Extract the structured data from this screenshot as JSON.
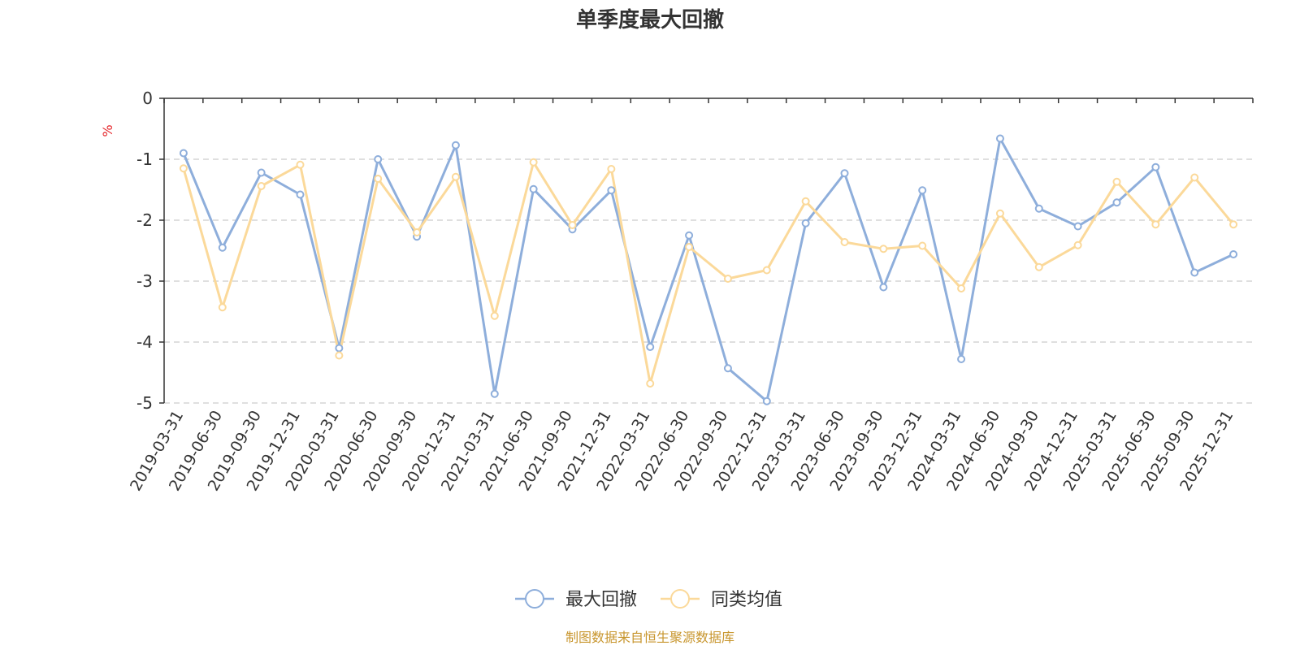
{
  "chart_data": {
    "type": "line",
    "title": "单季度最大回撤",
    "ylabel": "%",
    "xlabel": "",
    "ylim": [
      -5,
      0
    ],
    "yticks": [
      0,
      -1,
      -2,
      -3,
      -4,
      -5
    ],
    "grid": true,
    "legend_position": "bottom-center",
    "categories": [
      "2019-03-31",
      "2019-06-30",
      "2019-09-30",
      "2019-12-31",
      "2020-03-31",
      "2020-06-30",
      "2020-09-30",
      "2020-12-31",
      "2021-03-31",
      "2021-06-30",
      "2021-09-30",
      "2021-12-31",
      "2022-03-31",
      "2022-06-30",
      "2022-09-30",
      "2022-12-31",
      "2023-03-31",
      "2023-06-30",
      "2023-09-30",
      "2023-12-31",
      "2024-03-31",
      "2024-06-30",
      "2024-09-30",
      "2024-12-31",
      "2025-03-31",
      "2025-06-30",
      "2025-09-30",
      "2025-12-31"
    ],
    "series": [
      {
        "name": "最大回撤",
        "color": "#8eaedb",
        "values": [
          -0.9,
          -2.45,
          -1.22,
          -1.58,
          -4.1,
          -1.0,
          -2.27,
          -0.77,
          -4.85,
          -1.49,
          -2.15,
          -1.51,
          -4.08,
          -2.25,
          -4.43,
          -4.97,
          -2.05,
          -1.23,
          -3.1,
          -1.51,
          -4.28,
          -0.66,
          -1.81,
          -2.1,
          -1.71,
          -1.13,
          -2.86,
          -2.56
        ]
      },
      {
        "name": "同类均值",
        "color": "#fbd99a",
        "values": [
          -1.15,
          -3.43,
          -1.44,
          -1.09,
          -4.22,
          -1.32,
          -2.2,
          -1.29,
          -3.57,
          -1.05,
          -2.08,
          -1.16,
          -4.68,
          -2.44,
          -2.96,
          -2.82,
          -1.69,
          -2.36,
          -2.47,
          -2.42,
          -3.12,
          -1.89,
          -2.77,
          -2.41,
          -1.37,
          -2.07,
          -1.3,
          -2.07
        ]
      }
    ]
  },
  "colors": {
    "axis": "#333333",
    "grid": "#cccccc",
    "unit_label": "#e5262b",
    "source_note": "#c8962e"
  },
  "legend": {
    "items": [
      "最大回撤",
      "同类均值"
    ]
  },
  "footer": {
    "source": "制图数据来自恒生聚源数据库"
  }
}
